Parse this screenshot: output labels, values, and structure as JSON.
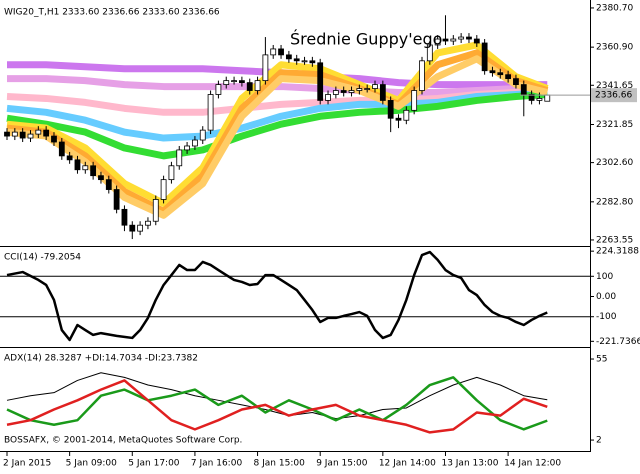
{
  "chart_data": [
    {
      "type": "candlestick",
      "title": "WIG20_T,H1  2333.60 2336.66 2333.60 2336.66",
      "annotation": "Średnie Guppy'ego",
      "categories": [
        "2 Jan 2015",
        null,
        null,
        null,
        null,
        null,
        null,
        null,
        "5 Jan 09:00",
        null,
        null,
        null,
        null,
        null,
        null,
        null,
        "5 Jan 17:00",
        null,
        null,
        null,
        null,
        null,
        null,
        null,
        "7 Jan 16:00",
        null,
        null,
        null,
        null,
        null,
        null,
        null,
        "8 Jan 15:00",
        null,
        null,
        null,
        null,
        null,
        null,
        null,
        "9 Jan 15:00",
        null,
        null,
        null,
        null,
        null,
        null,
        null,
        "12 Jan 14:00",
        null,
        null,
        null,
        null,
        null,
        null,
        null,
        "13 Jan 13:00",
        null,
        null,
        null,
        null,
        null,
        null,
        null,
        "14 Jan 12:00",
        null,
        null,
        null,
        null,
        null
      ],
      "open": [
        2318,
        2316,
        2318,
        2315,
        2317,
        2319,
        2316,
        2313,
        2306,
        2304,
        2299,
        2301,
        2296,
        2294,
        2289,
        2279,
        2271,
        2268,
        2271,
        2273,
        2284,
        2294,
        2301,
        2309,
        2311,
        2314,
        2319,
        2337,
        2342,
        2344,
        2344,
        2343,
        2339,
        2344,
        2357,
        2360,
        2357,
        2355,
        2354,
        2354,
        2353,
        2334,
        2337,
        2339,
        2338,
        2339,
        2340,
        2340,
        2342,
        2334,
        2325,
        2324,
        2329,
        2339,
        2354,
        2362,
        2365,
        2364,
        2365,
        2366,
        2365,
        2363,
        2349,
        2348,
        2347,
        2345,
        2342,
        2337,
        2334,
        2333.6
      ],
      "high": [
        2320,
        2320,
        2320,
        2319,
        2321,
        2321,
        2318,
        2315,
        2308,
        2306,
        2303,
        2303,
        2298,
        2296,
        2291,
        2281,
        2273,
        2273,
        2275,
        2286,
        2296,
        2303,
        2311,
        2313,
        2316,
        2321,
        2339,
        2344,
        2346,
        2346,
        2346,
        2345,
        2346,
        2366,
        2362,
        2362,
        2359,
        2357,
        2356,
        2356,
        2355,
        2339,
        2341,
        2341,
        2341,
        2342,
        2342,
        2344,
        2344,
        2336,
        2327,
        2331,
        2341,
        2356,
        2364,
        2367,
        2377,
        2367,
        2368,
        2368,
        2367,
        2365,
        2351,
        2350,
        2349,
        2347,
        2344,
        2339,
        2338,
        2336.66
      ],
      "low": [
        2314,
        2314,
        2313,
        2313,
        2315,
        2314,
        2311,
        2304,
        2302,
        2297,
        2297,
        2294,
        2292,
        2287,
        2277,
        2268,
        2264,
        2266,
        2269,
        2271,
        2282,
        2292,
        2299,
        2307,
        2309,
        2312,
        2317,
        2335,
        2340,
        2342,
        2341,
        2337,
        2337,
        2342,
        2355,
        2355,
        2353,
        2352,
        2352,
        2351,
        2332,
        2332,
        2335,
        2336,
        2336,
        2337,
        2338,
        2338,
        2332,
        2318,
        2320,
        2322,
        2327,
        2337,
        2352,
        2360,
        2362,
        2362,
        2363,
        2363,
        2361,
        2347,
        2346,
        2345,
        2343,
        2340,
        2326,
        2332,
        2332,
        2333.6
      ],
      "close": [
        2316,
        2318,
        2315,
        2317,
        2319,
        2316,
        2313,
        2306,
        2304,
        2299,
        2301,
        2296,
        2294,
        2289,
        2279,
        2271,
        2268,
        2271,
        2273,
        2284,
        2294,
        2301,
        2309,
        2311,
        2314,
        2319,
        2337,
        2342,
        2344,
        2344,
        2343,
        2339,
        2344,
        2357,
        2360,
        2357,
        2355,
        2354,
        2354,
        2353,
        2334,
        2337,
        2339,
        2338,
        2339,
        2340,
        2340,
        2342,
        2334,
        2325,
        2324,
        2329,
        2339,
        2354,
        2362,
        2365,
        2364,
        2365,
        2366,
        2365,
        2363,
        2349,
        2348,
        2347,
        2345,
        2342,
        2337,
        2334,
        2335,
        2336.66
      ],
      "up_color": "#ffffff",
      "down_color": "#000000",
      "last_price": 2336.66,
      "ylim": [
        2261,
        2383.7
      ],
      "yticks": [
        {
          "value": 2380.7,
          "label": "2380.70"
        },
        {
          "value": 2360.9,
          "label": "2360.90"
        },
        {
          "value": 2341.65,
          "label": "2341.65"
        },
        {
          "value": 2321.85,
          "label": "2321.85"
        },
        {
          "value": 2302.6,
          "label": "2302.60"
        },
        {
          "value": 2282.8,
          "label": "2282.80"
        },
        {
          "value": 2263.55,
          "label": "2263.55"
        }
      ],
      "ribbons": [
        {
          "color": "#cc77ee",
          "x": [
            0,
            5,
            10,
            15,
            20,
            25,
            30,
            35,
            40,
            45,
            50,
            55,
            60,
            65,
            69
          ],
          "values": [
            2352,
            2352,
            2351,
            2350,
            2350,
            2350,
            2349,
            2348,
            2346,
            2345,
            2343,
            2342,
            2342,
            2342,
            2342
          ]
        },
        {
          "color": "#e6a0e6",
          "x": [
            0,
            5,
            10,
            15,
            20,
            25,
            30,
            35,
            40,
            45,
            50,
            55,
            60,
            65,
            69
          ],
          "values": [
            2345,
            2345,
            2344,
            2342,
            2341,
            2341,
            2341,
            2341,
            2340,
            2339,
            2338,
            2338,
            2339,
            2340,
            2340
          ]
        },
        {
          "color": "#ffb8cc",
          "x": [
            0,
            5,
            10,
            15,
            20,
            25,
            30,
            35,
            40,
            45,
            50,
            55,
            60,
            65,
            69
          ],
          "values": [
            2336,
            2335,
            2333,
            2330,
            2328,
            2328,
            2330,
            2332,
            2333,
            2334,
            2334,
            2335,
            2337,
            2338,
            2338
          ]
        },
        {
          "color": "#66ccff",
          "x": [
            0,
            5,
            10,
            15,
            20,
            25,
            30,
            35,
            40,
            45,
            50,
            55,
            60,
            65,
            69
          ],
          "values": [
            2330,
            2328,
            2324,
            2318,
            2315,
            2316,
            2320,
            2326,
            2330,
            2332,
            2332,
            2333,
            2336,
            2337,
            2338
          ]
        },
        {
          "color": "#33dd33",
          "x": [
            0,
            5,
            10,
            15,
            20,
            25,
            30,
            35,
            40,
            45,
            50,
            55,
            60,
            65,
            69
          ],
          "values": [
            2325,
            2322,
            2318,
            2310,
            2306,
            2309,
            2316,
            2322,
            2326,
            2328,
            2329,
            2331,
            2334,
            2336,
            2337
          ]
        },
        {
          "color": "#ffdd33",
          "x": [
            0,
            5,
            10,
            15,
            20,
            25,
            30,
            35,
            40,
            45,
            50,
            55,
            60,
            65,
            69
          ],
          "values": [
            2322,
            2320,
            2310,
            2292,
            2282,
            2300,
            2335,
            2352,
            2350,
            2342,
            2334,
            2358,
            2362,
            2346,
            2340
          ]
        },
        {
          "color": "#ffaa33",
          "x": [
            0,
            5,
            10,
            15,
            20,
            25,
            30,
            35,
            40,
            45,
            50,
            55,
            60,
            65,
            69
          ],
          "values": [
            2320,
            2318,
            2306,
            2288,
            2278,
            2296,
            2330,
            2348,
            2347,
            2340,
            2332,
            2352,
            2358,
            2344,
            2339
          ]
        },
        {
          "color": "#ffcc66",
          "x": [
            0,
            5,
            10,
            15,
            20,
            25,
            30,
            35,
            40,
            45,
            50,
            55,
            60,
            65,
            69
          ],
          "values": [
            2318,
            2316,
            2303,
            2285,
            2276,
            2292,
            2326,
            2345,
            2344,
            2339,
            2331,
            2346,
            2355,
            2342,
            2338
          ]
        }
      ]
    },
    {
      "type": "line",
      "title": "CCI(14) -79.2054",
      "x": [
        0,
        2,
        4,
        5,
        6,
        7,
        8,
        9,
        10,
        11,
        12,
        14,
        16,
        17,
        18,
        19,
        20,
        21,
        22,
        23,
        24,
        25,
        26,
        27,
        28,
        29,
        30,
        31,
        32,
        33,
        34,
        35,
        36,
        37,
        38,
        39,
        40,
        41,
        42,
        43,
        44,
        45,
        46,
        47,
        48,
        49,
        50,
        51,
        52,
        53,
        54,
        55,
        56,
        57,
        58,
        59,
        60,
        61,
        62,
        63,
        64,
        65,
        66,
        67,
        68,
        69
      ],
      "series": [
        {
          "color": "#000000",
          "values": [
            106,
            121,
            82,
            57,
            -17,
            -166,
            -215,
            -141,
            -166,
            -190,
            -181,
            -195,
            -205,
            -166,
            -106,
            -17,
            57,
            106,
            156,
            131,
            131,
            171,
            156,
            131,
            106,
            82,
            72,
            57,
            62,
            106,
            106,
            82,
            57,
            32,
            -17,
            -67,
            -126,
            -106,
            -106,
            -96,
            -87,
            -77,
            -96,
            -166,
            -205,
            -190,
            -116,
            -17,
            106,
            205,
            220,
            181,
            131,
            106,
            92,
            32,
            7,
            -42,
            -77,
            -96,
            -106,
            -126,
            -141,
            -116,
            -96,
            -79.2054
          ]
        }
      ],
      "levels": [
        100,
        -100
      ],
      "ylim": [
        -235,
        235
      ],
      "yticks": [
        224.3188,
        100,
        {
          "value": 0,
          "label": "0.00"
        },
        -100,
        -221.7366
      ]
    },
    {
      "type": "line",
      "title": "ADX(14) 28.3287 +DI:14.7034 -DI:23.7382",
      "watermark": "BOSSAFX, © 2001-2014, MetaQuotes Software Corp.",
      "x": [
        0,
        3,
        6,
        9,
        12,
        15,
        18,
        21,
        24,
        27,
        30,
        33,
        36,
        39,
        42,
        45,
        48,
        51,
        54,
        57,
        60,
        63,
        66,
        69
      ],
      "series": [
        {
          "color": "#000000",
          "values": [
            28,
            31,
            33,
            41,
            46,
            43,
            38,
            35,
            31,
            28,
            25,
            22,
            18,
            20,
            16,
            18,
            22,
            23,
            31,
            38,
            43,
            38,
            31,
            28.3287
          ]
        },
        {
          "color": "#1a9a1a",
          "values": [
            22,
            15,
            12,
            15,
            31,
            35,
            28,
            31,
            35,
            25,
            31,
            20,
            28,
            22,
            15,
            22,
            15,
            25,
            38,
            43,
            28,
            15,
            9,
            14.7034
          ]
        },
        {
          "color": "#e02020",
          "values": [
            12,
            15,
            22,
            28,
            35,
            41,
            28,
            15,
            9,
            15,
            22,
            25,
            18,
            22,
            25,
            18,
            15,
            12,
            7,
            9,
            20,
            18,
            29,
            23.7382
          ]
        }
      ],
      "ylim": [
        -4.5,
        60.9
      ],
      "yticks": [
        55,
        2
      ]
    }
  ]
}
